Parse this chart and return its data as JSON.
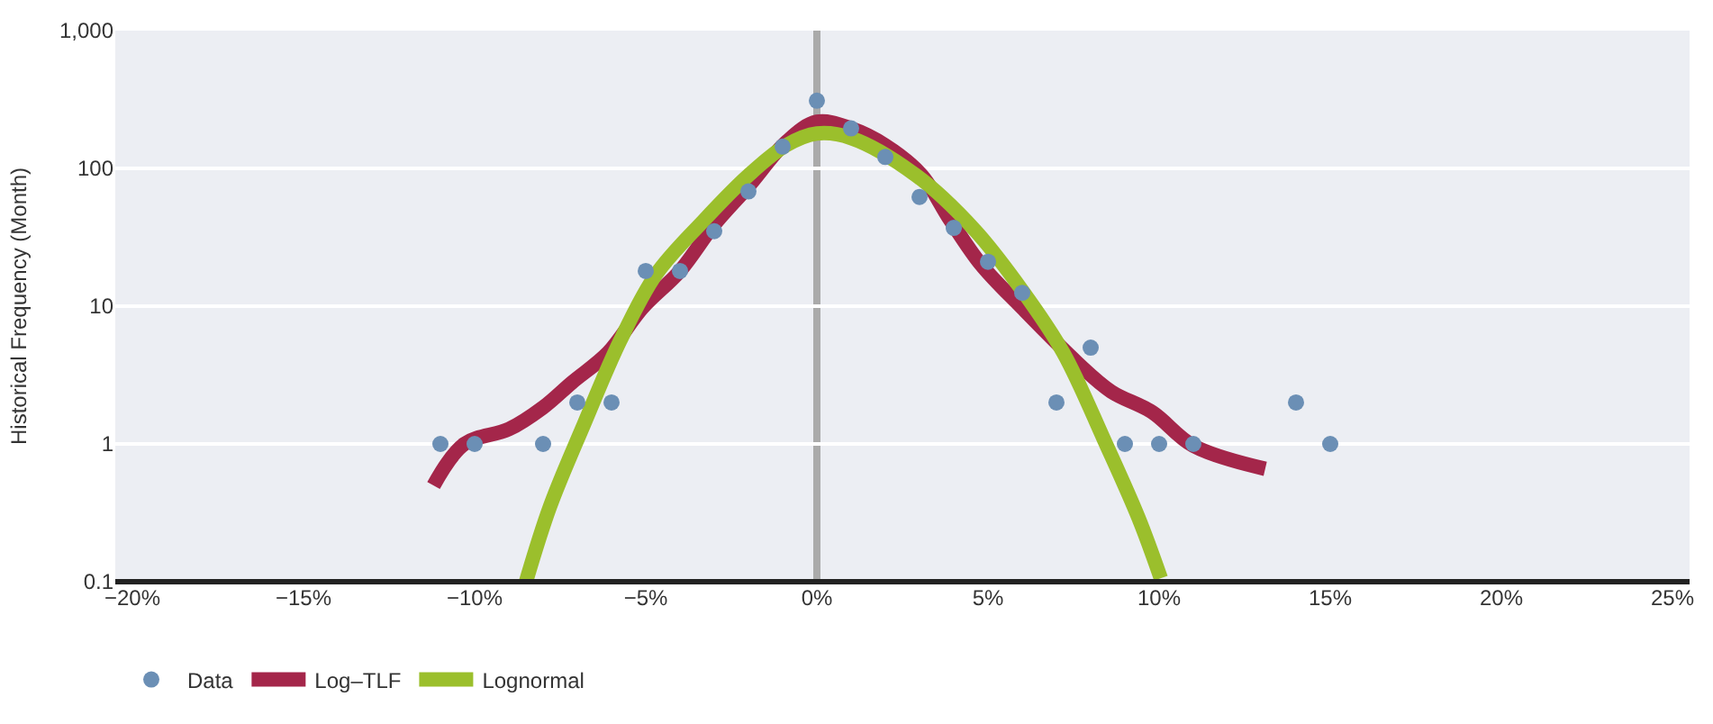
{
  "chart_data": {
    "type": "scatter",
    "ylabel": "Historical Frequency (Month)",
    "log": "y",
    "grid": "y",
    "legend": "bottom left",
    "xlim": [
      -20.5,
      25.5
    ],
    "ylim": [
      0.1,
      1000
    ],
    "xticks": [
      {
        "value": -20,
        "label": "−20%"
      },
      {
        "value": -15,
        "label": "−15%"
      },
      {
        "value": -10,
        "label": "−10%"
      },
      {
        "value": -5,
        "label": "−5%"
      },
      {
        "value": 0,
        "label": "0%"
      },
      {
        "value": 5,
        "label": "5%"
      },
      {
        "value": 10,
        "label": "10%"
      },
      {
        "value": 15,
        "label": "15%"
      },
      {
        "value": 20,
        "label": "20%"
      },
      {
        "value": 25,
        "label": "25%"
      }
    ],
    "yticks": [
      0.1,
      1,
      10,
      100,
      {
        "value": 1000,
        "label": "1,000"
      }
    ],
    "ref_lines": [
      {
        "axis": "x",
        "value": 0,
        "label": null,
        "color": "#aaaaaa"
      }
    ],
    "series": [
      {
        "name": "Log–TLF",
        "type": "line",
        "color": "#a4264a",
        "marker": "none",
        "line_style": "solid",
        "x": [
          -11.2,
          -10.3,
          -9.0,
          -8.0,
          -7.15,
          -6.1,
          -5.1,
          -4.0,
          -3.0,
          -2.0,
          -0.9,
          0,
          1,
          2,
          3.05,
          3.9,
          4.8,
          6.0,
          7.6,
          8.6,
          9.8,
          11.0,
          13.1
        ],
        "values": [
          0.5,
          1.0,
          1.28,
          1.84,
          2.8,
          4.6,
          9.7,
          18,
          39,
          74,
          155,
          218,
          195,
          147,
          90,
          42,
          20,
          9.7,
          3.9,
          2.4,
          1.7,
          0.97,
          0.66
        ]
      },
      {
        "name": "Lognormal",
        "type": "line",
        "color": "#9bbf2c",
        "marker": "none",
        "line_style": "solid",
        "x": [
          -8.5,
          -7.8,
          -6.8,
          -5.75,
          -4.7,
          -3.3,
          -2.0,
          -0.9,
          0,
          1,
          2.9,
          4.6,
          6.0,
          7.2,
          8.4,
          9.4,
          10.05
        ],
        "values": [
          0.1,
          0.35,
          1.4,
          5.6,
          17,
          42,
          89,
          147,
          179,
          166,
          89,
          36,
          13,
          4.6,
          1.06,
          0.29,
          0.106
        ]
      },
      {
        "name": "Data",
        "color": "#6b8fb5",
        "marker": "circle",
        "x": [
          -11,
          -10,
          -8,
          -7,
          -6,
          -5,
          -4,
          -3,
          -2,
          -1,
          0,
          1,
          2,
          3,
          4,
          5,
          6,
          7,
          8,
          9,
          10,
          11,
          14,
          15
        ],
        "values": [
          1,
          1,
          1,
          2,
          2,
          18,
          18,
          35,
          68,
          144,
          310,
          195,
          121,
          62,
          37,
          21,
          12.5,
          2,
          5,
          1,
          1,
          1,
          2,
          1
        ]
      }
    ]
  }
}
